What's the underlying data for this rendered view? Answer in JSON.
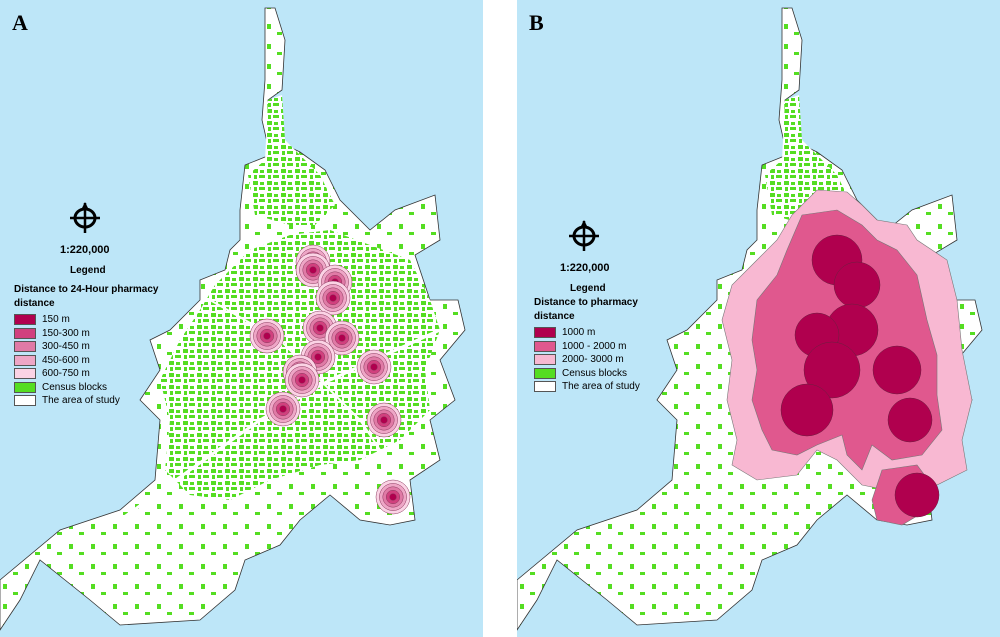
{
  "panels": [
    {
      "letter": "A",
      "scale": "1:220,000",
      "legend_title": "Legend",
      "legend_heading_1": "Distance to 24-Hour pharmacy",
      "legend_heading_2": "distance",
      "legend_items": [
        {
          "label": "150 m",
          "color": "#b0004e"
        },
        {
          "label": "150-300 m",
          "color": "#d1407e"
        },
        {
          "label": "300-450 m",
          "color": "#e07aa6"
        },
        {
          "label": "450-600 m",
          "color": "#eea6c6"
        },
        {
          "label": "600-750 m",
          "color": "#fbd3e5"
        },
        {
          "label": "Census blocks",
          "color": "#55dd22"
        },
        {
          "label": "The area of study",
          "color": "#ffffff"
        }
      ]
    },
    {
      "letter": "B",
      "scale": "1:220,000",
      "legend_title": "Legend",
      "legend_heading_1": "Distance to pharmacy",
      "legend_heading_2": "distance",
      "legend_items": [
        {
          "label": "1000 m",
          "color": "#b0004e"
        },
        {
          "label": "1000 - 2000 m",
          "color": "#e0588e"
        },
        {
          "label": "2000- 3000 m",
          "color": "#f8b8d2"
        },
        {
          "label": "Census blocks",
          "color": "#55dd22"
        },
        {
          "label": "The area of study",
          "color": "#ffffff"
        }
      ]
    }
  ],
  "colors": {
    "water": "#bde6f8",
    "study_area": "#ffffff",
    "census_blocks": "#55dd22"
  }
}
